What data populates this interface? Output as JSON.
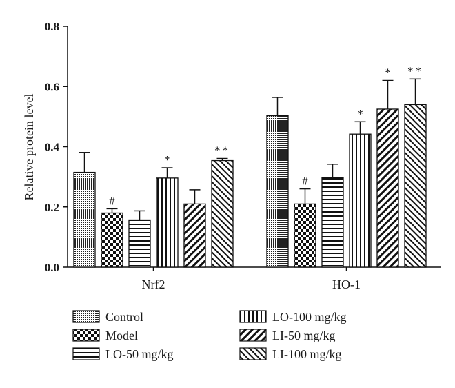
{
  "chart_data": {
    "type": "bar",
    "title": "",
    "xlabel": "",
    "ylabel": "Relative protein level",
    "ylim": [
      0,
      0.8
    ],
    "yticks": [
      "0.0",
      "0.2",
      "0.4",
      "0.6",
      "0.8"
    ],
    "grid": false,
    "legend_position": "bottom",
    "categories": [
      "Nrf2",
      "HO-1"
    ],
    "series": [
      {
        "name": "Control",
        "pattern": "dense-dots",
        "values": [
          0.315,
          0.503
        ],
        "errors": [
          0.066,
          0.061
        ],
        "annotations": [
          "",
          ""
        ]
      },
      {
        "name": "Model",
        "pattern": "checker",
        "values": [
          0.18,
          0.21
        ],
        "errors": [
          0.014,
          0.05
        ],
        "annotations": [
          "#",
          "#"
        ]
      },
      {
        "name": "LO-50 mg/kg",
        "pattern": "horizontal-lines",
        "values": [
          0.157,
          0.297
        ],
        "errors": [
          0.03,
          0.045
        ],
        "annotations": [
          "",
          ""
        ]
      },
      {
        "name": "LO-100 mg/kg",
        "pattern": "vertical-lines",
        "values": [
          0.296,
          0.442
        ],
        "errors": [
          0.034,
          0.041
        ],
        "annotations": [
          "*",
          "*"
        ]
      },
      {
        "name": "LI-50 mg/kg",
        "pattern": "diagonal-up",
        "values": [
          0.21,
          0.525
        ],
        "errors": [
          0.047,
          0.095
        ],
        "annotations": [
          "",
          "*"
        ]
      },
      {
        "name": "LI-100 mg/kg",
        "pattern": "diagonal-down",
        "values": [
          0.354,
          0.54
        ],
        "errors": [
          0.007,
          0.085
        ],
        "annotations": [
          "**",
          "**"
        ]
      }
    ]
  }
}
